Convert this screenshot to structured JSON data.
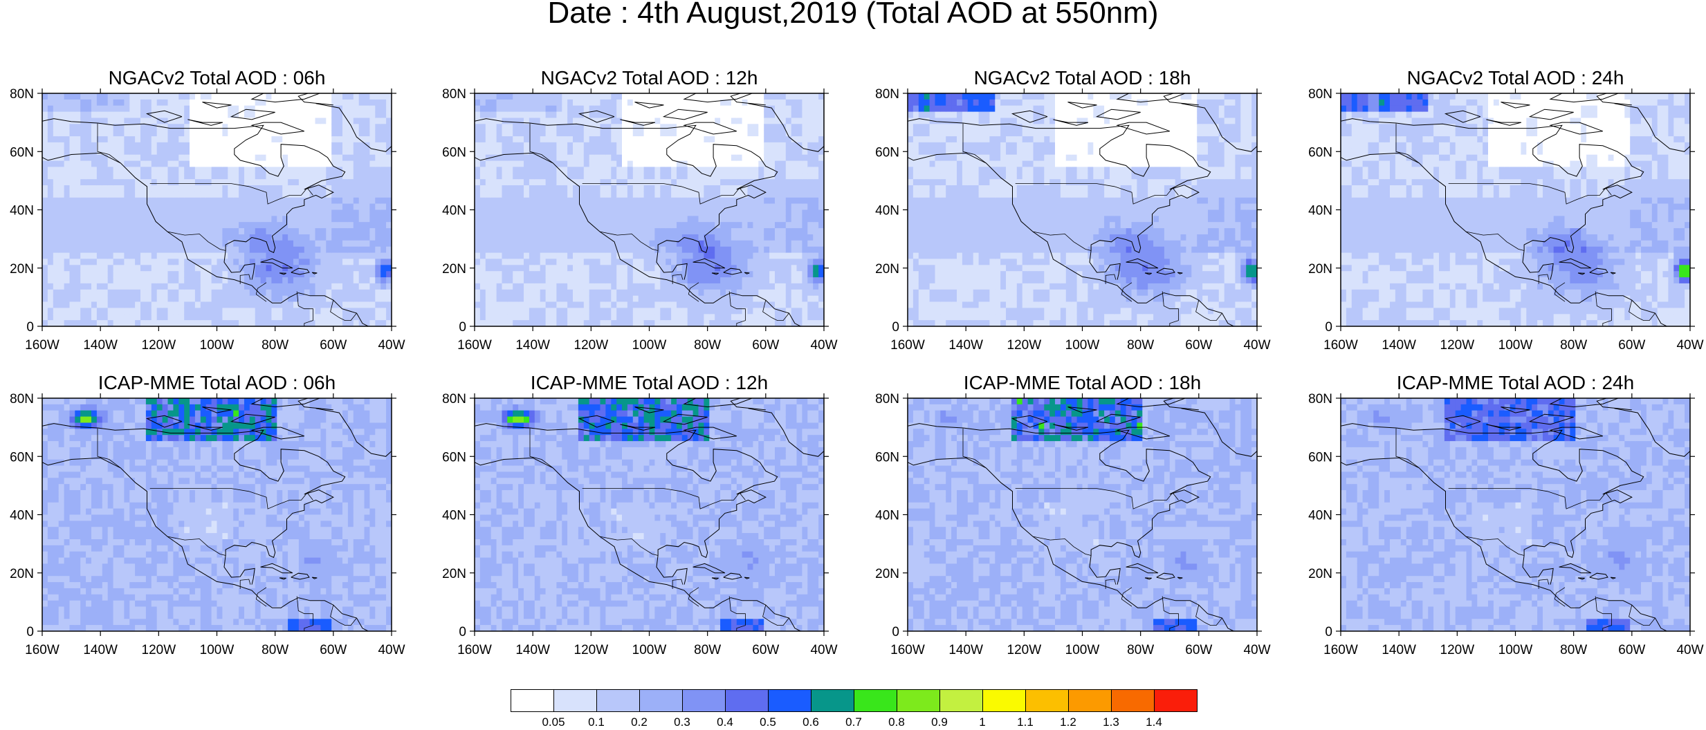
{
  "title": "Date : 4th August,2019 (Total AOD at 550nm)",
  "panels": [
    {
      "id": "ngac-06h",
      "title": "NGACv2 Total AOD : 06h",
      "model": "NGACv2",
      "forecast_hour": "06h"
    },
    {
      "id": "ngac-12h",
      "title": "NGACv2 Total AOD : 12h",
      "model": "NGACv2",
      "forecast_hour": "12h"
    },
    {
      "id": "ngac-18h",
      "title": "NGACv2 Total AOD : 18h",
      "model": "NGACv2",
      "forecast_hour": "18h"
    },
    {
      "id": "ngac-24h",
      "title": "NGACv2 Total AOD : 24h",
      "model": "NGACv2",
      "forecast_hour": "24h"
    },
    {
      "id": "icap-06h",
      "title": "ICAP-MME Total AOD : 06h",
      "model": "ICAP-MME",
      "forecast_hour": "06h"
    },
    {
      "id": "icap-12h",
      "title": "ICAP-MME Total AOD : 12h",
      "model": "ICAP-MME",
      "forecast_hour": "12h"
    },
    {
      "id": "icap-18h",
      "title": "ICAP-MME Total AOD : 18h",
      "model": "ICAP-MME",
      "forecast_hour": "18h"
    },
    {
      "id": "icap-24h",
      "title": "ICAP-MME Total AOD : 24h",
      "model": "ICAP-MME",
      "forecast_hour": "24h"
    }
  ],
  "axes": {
    "lat_ticks": [
      "80N",
      "60N",
      "40N",
      "20N",
      "0"
    ],
    "lon_ticks": [
      "160W",
      "140W",
      "120W",
      "100W",
      "80W",
      "60W",
      "40W"
    ],
    "lat_range": [
      0,
      80
    ],
    "lon_range": [
      -160,
      -40
    ]
  },
  "colorbar": {
    "levels": [
      "0.05",
      "0.1",
      "0.2",
      "0.3",
      "0.4",
      "0.5",
      "0.6",
      "0.7",
      "0.8",
      "0.9",
      "1",
      "1.1",
      "1.2",
      "1.3",
      "1.4"
    ],
    "colors": [
      "#ffffff",
      "#d8e2fc",
      "#b8c7fa",
      "#9cb0f8",
      "#8093f5",
      "#5f6df0",
      "#1a5cff",
      "#07968a",
      "#39e61b",
      "#7dea1c",
      "#c3f040",
      "#fafa00",
      "#fcbf00",
      "#fc9a00",
      "#f86a00",
      "#fa1e0a"
    ]
  }
}
